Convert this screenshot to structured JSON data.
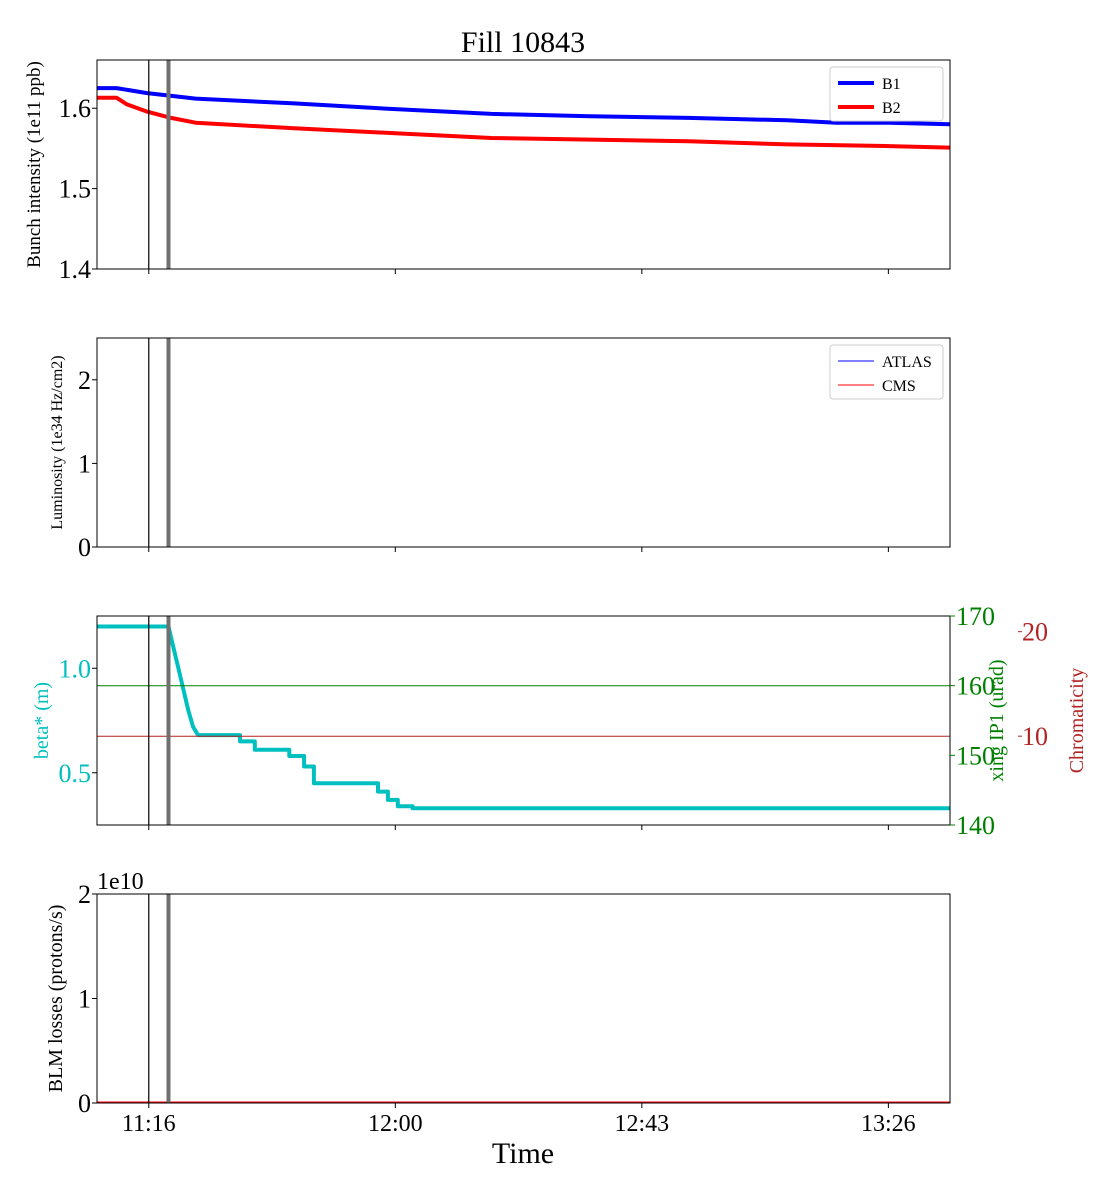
{
  "figure": {
    "title": "Fill 10843",
    "xlabel": "Time"
  },
  "chart_data": [
    {
      "type": "line",
      "ylabel": "Bunch intensity (1e11 ppb)",
      "ylim": [
        1.4,
        1.66
      ],
      "yticks": [
        1.4,
        1.5,
        1.6
      ],
      "ytick_labels": [
        "1.4",
        "1.5",
        "1.6"
      ],
      "x_range_min": [
        0,
        173
      ],
      "xticks_min": [
        10.5,
        60.5,
        110.5,
        160.5
      ],
      "xtick_labels": [
        "",
        "",
        "",
        ""
      ],
      "vlines_min": [
        {
          "x": 10.5,
          "style": "thin"
        },
        {
          "x": 14.5,
          "style": "thick"
        }
      ],
      "legend": {
        "position": "top-right",
        "entries": [
          "B1",
          "B2"
        ]
      },
      "series": [
        {
          "name": "B1",
          "color": "#0000ff",
          "width": 4,
          "x": [
            0,
            4,
            10,
            20,
            40,
            60,
            80,
            100,
            120,
            140,
            150,
            160,
            173
          ],
          "y": [
            1.625,
            1.625,
            1.619,
            1.612,
            1.606,
            1.599,
            1.593,
            1.59,
            1.588,
            1.585,
            1.582,
            1.582,
            1.58
          ]
        },
        {
          "name": "B2",
          "color": "#ff0000",
          "width": 4,
          "x": [
            0,
            4,
            6,
            10,
            15,
            20,
            40,
            60,
            80,
            100,
            120,
            140,
            160,
            173
          ],
          "y": [
            1.613,
            1.613,
            1.605,
            1.596,
            1.588,
            1.582,
            1.575,
            1.569,
            1.563,
            1.561,
            1.559,
            1.555,
            1.553,
            1.551
          ]
        }
      ]
    },
    {
      "type": "line",
      "ylabel": "Luminosity (1e34 Hz/cm2)",
      "ylim": [
        0,
        2.5
      ],
      "yticks": [
        0,
        1,
        2
      ],
      "ytick_labels": [
        "0",
        "1",
        "2"
      ],
      "x_range_min": [
        0,
        173
      ],
      "xticks_min": [
        10.5,
        60.5,
        110.5,
        160.5
      ],
      "xtick_labels": [
        "",
        "",
        "",
        ""
      ],
      "vlines_min": [
        {
          "x": 10.5,
          "style": "thin"
        },
        {
          "x": 14.5,
          "style": "thick"
        }
      ],
      "legend": {
        "position": "top-right",
        "entries": [
          "ATLAS",
          "CMS"
        ]
      },
      "series": [
        {
          "name": "ATLAS",
          "color": "#0000ff",
          "width": 1,
          "x": [
            0,
            173
          ],
          "y": [
            0,
            0
          ]
        },
        {
          "name": "CMS",
          "color": "#ff0000",
          "width": 1,
          "x": [
            0,
            173
          ],
          "y": [
            0,
            0
          ]
        }
      ]
    },
    {
      "type": "line",
      "ylabel": "beta* (m)",
      "ylabel_color": "#00bfbf",
      "ylim": [
        0.25,
        1.25
      ],
      "yticks": [
        0.5,
        1.0
      ],
      "ytick_labels": [
        "0.5",
        "1.0"
      ],
      "x_range_min": [
        0,
        173
      ],
      "xticks_min": [
        10.5,
        60.5,
        110.5,
        160.5
      ],
      "xtick_labels": [
        "",
        "",
        "",
        ""
      ],
      "vlines_min": [
        {
          "x": 10.5,
          "style": "thin"
        },
        {
          "x": 14.5,
          "style": "thick"
        }
      ],
      "right_axis_1": {
        "label": "xing IP1 (urad)",
        "color": "#008000",
        "ylim": [
          140,
          170
        ],
        "yticks": [
          140,
          150,
          160,
          170
        ],
        "ytick_labels": [
          "140",
          "150",
          "160",
          "170"
        ]
      },
      "right_axis_2": {
        "label": "Chromaticity",
        "color": "#b22222",
        "ylim": [
          1.5,
          21.5
        ],
        "yticks": [
          10,
          20
        ],
        "ytick_labels": [
          "10",
          "20"
        ]
      },
      "series": [
        {
          "name": "beta*",
          "color": "#00bfbf",
          "width": 4,
          "axis": "left",
          "x": [
            0,
            14.5,
            15.5,
            16.5,
            17.5,
            18.5,
            19.5,
            20.5,
            29,
            29,
            32,
            32,
            39,
            39,
            42,
            42,
            44,
            44,
            57,
            57,
            59,
            59,
            61,
            61,
            64,
            64,
            173
          ],
          "y": [
            1.2,
            1.2,
            1.1,
            1.0,
            0.9,
            0.8,
            0.72,
            0.68,
            0.68,
            0.65,
            0.65,
            0.61,
            0.61,
            0.58,
            0.58,
            0.53,
            0.53,
            0.45,
            0.45,
            0.41,
            0.41,
            0.37,
            0.37,
            0.34,
            0.34,
            0.33,
            0.33
          ]
        },
        {
          "name": "xing IP1",
          "color": "#008000",
          "width": 1,
          "axis": "right_1",
          "x": [
            0,
            173
          ],
          "y": [
            160,
            160
          ]
        },
        {
          "name": "Chromaticity",
          "color": "#b22222",
          "width": 1,
          "axis": "right_2",
          "x": [
            0,
            173
          ],
          "y": [
            10,
            10
          ]
        }
      ]
    },
    {
      "type": "line",
      "ylabel": "BLM losses (protons/s)",
      "ylim": [
        0,
        2
      ],
      "yticks": [
        0,
        1,
        2
      ],
      "ytick_labels": [
        "0",
        "1",
        "2"
      ],
      "offset_text": "1e10",
      "x_range_min": [
        0,
        173
      ],
      "xticks_min": [
        10.5,
        60.5,
        110.5,
        160.5
      ],
      "xtick_labels": [
        "11:16",
        "12:00",
        "12:43",
        "13:26"
      ],
      "vlines_min": [
        {
          "x": 10.5,
          "style": "thin"
        },
        {
          "x": 14.5,
          "style": "thick"
        }
      ],
      "series": [
        {
          "name": "BLM",
          "color": "#ff0000",
          "width": 3,
          "x": [
            0,
            173
          ],
          "y": [
            0,
            0
          ]
        }
      ]
    }
  ]
}
